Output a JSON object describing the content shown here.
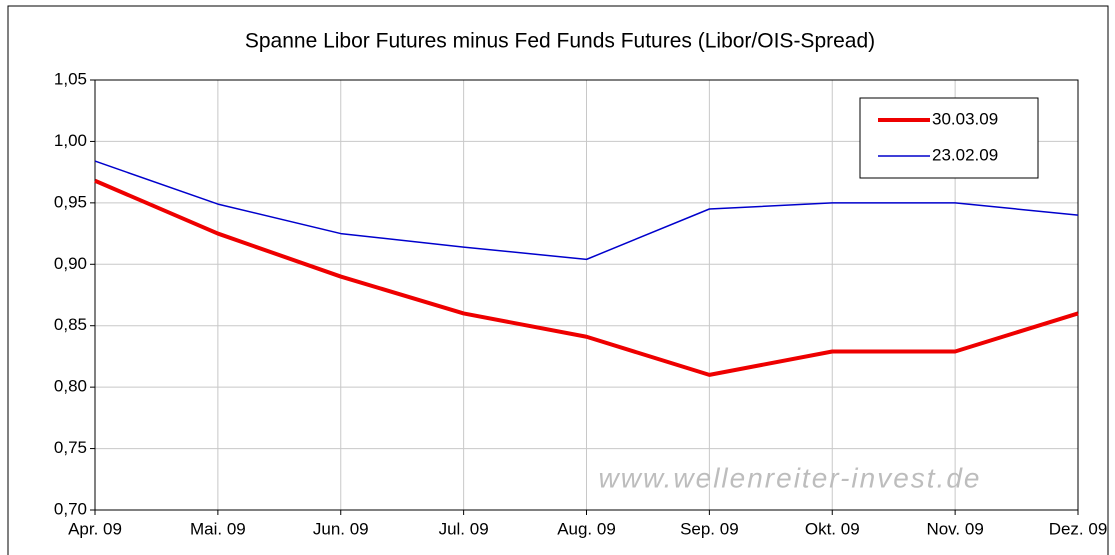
{
  "chart_data": {
    "type": "line",
    "title": "Spanne Libor Futures minus Fed Funds Futures (Libor/OIS-Spread)",
    "categories": [
      "Apr. 09",
      "Mai. 09",
      "Jun. 09",
      "Jul. 09",
      "Aug. 09",
      "Sep. 09",
      "Okt. 09",
      "Nov. 09",
      "Dez. 09"
    ],
    "series": [
      {
        "name": "30.03.09",
        "color": "#ee0000",
        "values": [
          0.968,
          0.925,
          0.89,
          0.86,
          0.841,
          0.81,
          0.829,
          0.829,
          0.86
        ]
      },
      {
        "name": "23.02.09",
        "color": "#0000cc",
        "values": [
          0.984,
          0.949,
          0.925,
          0.914,
          0.904,
          0.945,
          0.95,
          0.95,
          0.94
        ]
      }
    ],
    "ylim": [
      0.7,
      1.05
    ],
    "yticks": [
      {
        "value": 0.7,
        "label": "0,70"
      },
      {
        "value": 0.75,
        "label": "0,75"
      },
      {
        "value": 0.8,
        "label": "0,80"
      },
      {
        "value": 0.85,
        "label": "0,85"
      },
      {
        "value": 0.9,
        "label": "0,90"
      },
      {
        "value": 0.95,
        "label": "0,95"
      },
      {
        "value": 1.0,
        "label": "1,00"
      },
      {
        "value": 1.05,
        "label": "1,05"
      }
    ],
    "grid": true,
    "legend": "upper right",
    "watermark": "www.wellenreiter-invest.de"
  }
}
